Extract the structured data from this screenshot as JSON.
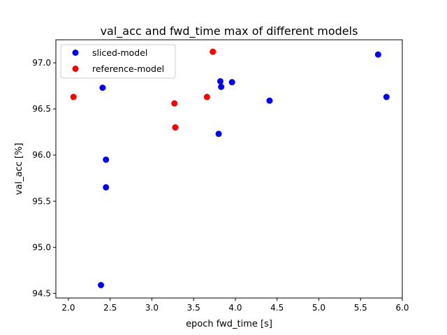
{
  "chart_data": {
    "type": "scatter",
    "title": "val_acc and fwd_time max of different models",
    "xlabel": "epoch fwd_time [s]",
    "ylabel": "val_acc [%]",
    "xlim": [
      1.85,
      6.0
    ],
    "ylim": [
      94.45,
      97.25
    ],
    "xticks": [
      2.0,
      2.5,
      3.0,
      3.5,
      4.0,
      4.5,
      5.0,
      5.5,
      6.0
    ],
    "xtick_labels": [
      "2.0",
      "2.5",
      "3.0",
      "3.5",
      "4.0",
      "4.5",
      "5.0",
      "5.5",
      "6.0"
    ],
    "yticks": [
      94.5,
      95.0,
      95.5,
      96.0,
      96.5,
      97.0
    ],
    "ytick_labels": [
      "94.5",
      "95.0",
      "95.5",
      "96.0",
      "96.5",
      "97.0"
    ],
    "grid": false,
    "legend_position": "top-left",
    "series": [
      {
        "name": "sliced-model",
        "color": "#0000ff",
        "points": [
          {
            "x": 2.39,
            "y": 94.59
          },
          {
            "x": 2.41,
            "y": 96.73
          },
          {
            "x": 2.45,
            "y": 95.95
          },
          {
            "x": 2.45,
            "y": 95.65
          },
          {
            "x": 3.8,
            "y": 96.23
          },
          {
            "x": 3.82,
            "y": 96.8
          },
          {
            "x": 3.83,
            "y": 96.74
          },
          {
            "x": 3.96,
            "y": 96.79
          },
          {
            "x": 4.41,
            "y": 96.59
          },
          {
            "x": 5.71,
            "y": 97.09
          },
          {
            "x": 5.81,
            "y": 96.63
          }
        ]
      },
      {
        "name": "reference-model",
        "color": "#ff0000",
        "points": [
          {
            "x": 2.06,
            "y": 96.63
          },
          {
            "x": 3.27,
            "y": 96.56
          },
          {
            "x": 3.28,
            "y": 96.3
          },
          {
            "x": 3.66,
            "y": 96.63
          },
          {
            "x": 3.73,
            "y": 97.12
          }
        ]
      }
    ]
  }
}
